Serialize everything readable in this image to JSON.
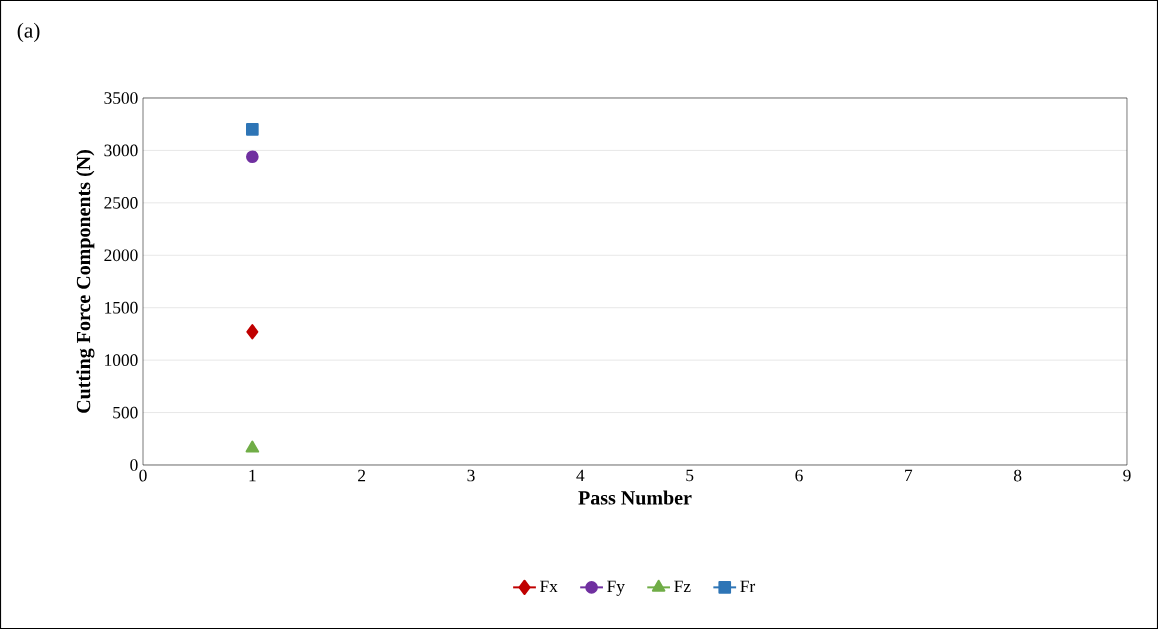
{
  "chart_data": {
    "type": "line",
    "annotations": [
      "(a)"
    ],
    "xlabel": "Pass Number",
    "ylabel": "Cutting Force Components (N)",
    "x": [
      1
    ],
    "series": [
      {
        "name": "Fx",
        "color": "#c00000",
        "marker": "diamond",
        "values": [
          1270
        ]
      },
      {
        "name": "Fy",
        "color": "#7030a0",
        "marker": "circle",
        "values": [
          2940
        ]
      },
      {
        "name": "Fz",
        "color": "#70ad47",
        "marker": "triangle",
        "values": [
          160
        ]
      },
      {
        "name": "Fr",
        "color": "#2e75b6",
        "marker": "square",
        "values": [
          3200
        ]
      }
    ],
    "xlim": [
      0,
      9
    ],
    "xticks": [
      0,
      1,
      2,
      3,
      4,
      5,
      6,
      7,
      8,
      9
    ],
    "ylim": [
      0,
      3500
    ],
    "yticks": [
      0,
      500,
      1000,
      1500,
      2000,
      2500,
      3000,
      3500
    ],
    "grid": "y",
    "legend": "bottom",
    "line_style": "solid"
  }
}
